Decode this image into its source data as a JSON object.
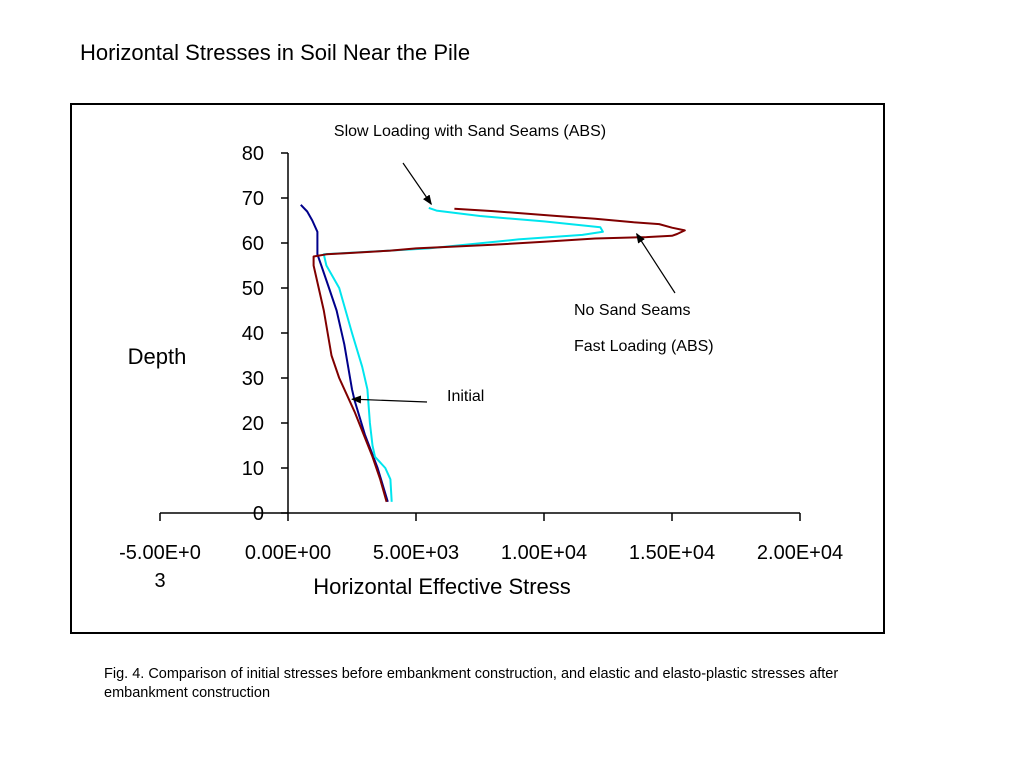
{
  "page": {
    "title": "Horizontal Stresses in Soil Near the Pile",
    "caption": "Fig. 4. Comparison of initial stresses before embankment construction, and elastic and elasto-plastic stresses after embankment construction"
  },
  "chart_data": {
    "type": "line",
    "title": "",
    "xlabel": "Horizontal Effective Stress",
    "ylabel": "Depth",
    "xlim": [
      -5000,
      20000
    ],
    "ylim": [
      0,
      80
    ],
    "x_ticks": [
      -5000,
      0,
      5000,
      10000,
      15000,
      20000
    ],
    "x_tick_labels": [
      "-5.00E+03",
      "0.00E+00",
      "5.00E+03",
      "1.00E+04",
      "1.50E+04",
      "2.00E+04"
    ],
    "y_ticks": [
      0,
      10,
      20,
      30,
      40,
      50,
      60,
      70,
      80
    ],
    "y_tick_labels": [
      "0",
      "10",
      "20",
      "30",
      "40",
      "50",
      "60",
      "70",
      "80"
    ],
    "grid": false,
    "legend": "none",
    "series": [
      {
        "color": "#00008b",
        "points": [
          [
            3900,
            2.5
          ],
          [
            3500,
            10
          ],
          [
            3000,
            17.5
          ],
          [
            2600,
            25
          ],
          [
            2500,
            27.5
          ],
          [
            2200,
            37.5
          ],
          [
            1900,
            45
          ],
          [
            1600,
            50
          ],
          [
            1300,
            55
          ],
          [
            1150,
            57.5
          ],
          [
            1150,
            62.5
          ],
          [
            950,
            65
          ],
          [
            750,
            67
          ],
          [
            500,
            68.5
          ]
        ]
      },
      {
        "color": "#00e5ee",
        "points": [
          [
            4050,
            2.5
          ],
          [
            4000,
            7.5
          ],
          [
            3800,
            10
          ],
          [
            3400,
            12.5
          ],
          [
            3300,
            15
          ],
          [
            3200,
            20
          ],
          [
            3100,
            27.5
          ],
          [
            2900,
            32.5
          ],
          [
            2500,
            40
          ],
          [
            2000,
            50
          ],
          [
            1500,
            55
          ],
          [
            1400,
            57.5
          ],
          [
            5500,
            58.8
          ],
          [
            9000,
            60.8
          ],
          [
            11500,
            61.8
          ],
          [
            12300,
            62.5
          ],
          [
            12200,
            63.5
          ],
          [
            10000,
            64.8
          ],
          [
            7500,
            66
          ],
          [
            5800,
            67.2
          ],
          [
            5500,
            67.8
          ]
        ]
      },
      {
        "color": "#800000",
        "points": [
          [
            3850,
            2.5
          ],
          [
            3600,
            7.5
          ],
          [
            3300,
            12.5
          ],
          [
            2600,
            22.5
          ],
          [
            2000,
            30
          ],
          [
            1700,
            35
          ],
          [
            1400,
            45
          ],
          [
            1000,
            55
          ],
          [
            1000,
            57
          ],
          [
            1500,
            57.5
          ],
          [
            2500,
            57.8
          ],
          [
            4000,
            58.3
          ],
          [
            5000,
            58.8
          ],
          [
            8000,
            59.6
          ],
          [
            10000,
            60.3
          ],
          [
            12000,
            61
          ],
          [
            14000,
            61.3
          ],
          [
            15000,
            61.6
          ],
          [
            15200,
            62
          ],
          [
            15500,
            62.8
          ],
          [
            15000,
            63.4
          ],
          [
            14500,
            64.2
          ],
          [
            13500,
            64.6
          ],
          [
            12000,
            65.4
          ],
          [
            10500,
            66
          ],
          [
            8000,
            67.1
          ],
          [
            6500,
            67.6
          ]
        ]
      }
    ],
    "annotations": [
      {
        "text": "Slow Loading with Sand Seams (ABS)",
        "target": [
          5600,
          67.5
        ]
      },
      {
        "text": "No Sand Seams",
        "target": [
          13500,
          62.5
        ]
      },
      {
        "text": "Fast Loading (ABS)"
      },
      {
        "text": "Initial",
        "target": [
          2500,
          25.3
        ]
      }
    ]
  }
}
